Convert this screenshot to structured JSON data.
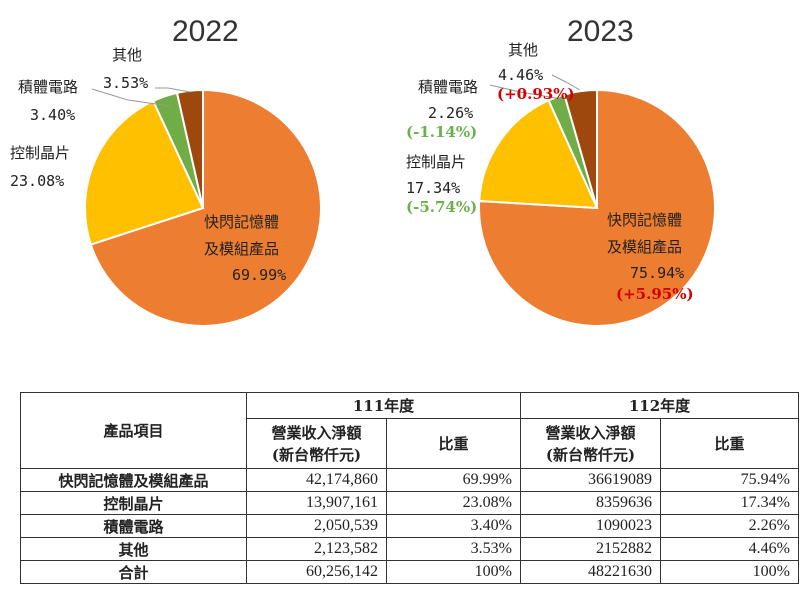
{
  "chart_data": [
    {
      "type": "pie",
      "title": "2022",
      "slices": [
        {
          "name": "快閃記憶體及模組產品",
          "value": 69.99,
          "label_name": "快閃記憶體",
          "label_name2": "及模組產品",
          "label_value": "69.99%"
        },
        {
          "name": "控制晶片",
          "value": 23.08,
          "label_name": "控制晶片",
          "label_value": "23.08%"
        },
        {
          "name": "積體電路",
          "value": 3.4,
          "label_name": "積體電路",
          "label_value": "3.40%"
        },
        {
          "name": "其他",
          "value": 3.53,
          "label_name": "其他",
          "label_value": "3.53%"
        }
      ]
    },
    {
      "type": "pie",
      "title": "2023",
      "slices": [
        {
          "name": "快閃記憶體及模組產品",
          "value": 75.94,
          "label_name": "快閃記憶體",
          "label_name2": "及模組產品",
          "label_value": "75.94%",
          "change": "(+5.95%)"
        },
        {
          "name": "控制晶片",
          "value": 17.34,
          "label_name": "控制晶片",
          "label_value": "17.34%",
          "change": "(-5.74%)"
        },
        {
          "name": "積體電路",
          "value": 2.26,
          "label_name": "積體電路",
          "label_value": "2.26%",
          "change": "(-1.14%)"
        },
        {
          "name": "其他",
          "value": 4.46,
          "label_name": "其他",
          "label_value": "4.46%",
          "change": "(+0.93%)"
        }
      ]
    }
  ],
  "colors": {
    "flash": "#ED7D31",
    "controller": "#FFC000",
    "ic": "#70AD47",
    "other": "#9E480E",
    "up": "#d40000",
    "down": "#6ab04c"
  },
  "table": {
    "col_item": "產品項目",
    "year1": "111年度",
    "year2": "112年度",
    "revenue_line1": "營業收入淨額",
    "revenue_line2": "(新台幣仟元)",
    "ratio": "比重",
    "rows": [
      {
        "name": "快閃記憶體及模組產品",
        "rev1": "42,174,860",
        "pct1": "69.99%",
        "rev2": "36619089",
        "pct2": "75.94%"
      },
      {
        "name": "控制晶片",
        "rev1": "13,907,161",
        "pct1": "23.08%",
        "rev2": "8359636",
        "pct2": "17.34%"
      },
      {
        "name": "積體電路",
        "rev1": "2,050,539",
        "pct1": "3.40%",
        "rev2": "1090023",
        "pct2": "2.26%"
      },
      {
        "name": "其他",
        "rev1": "2,123,582",
        "pct1": "3.53%",
        "rev2": "2152882",
        "pct2": "4.46%"
      },
      {
        "name": "合計",
        "rev1": "60,256,142",
        "pct1": "100%",
        "rev2": "48221630",
        "pct2": "100%"
      }
    ]
  }
}
